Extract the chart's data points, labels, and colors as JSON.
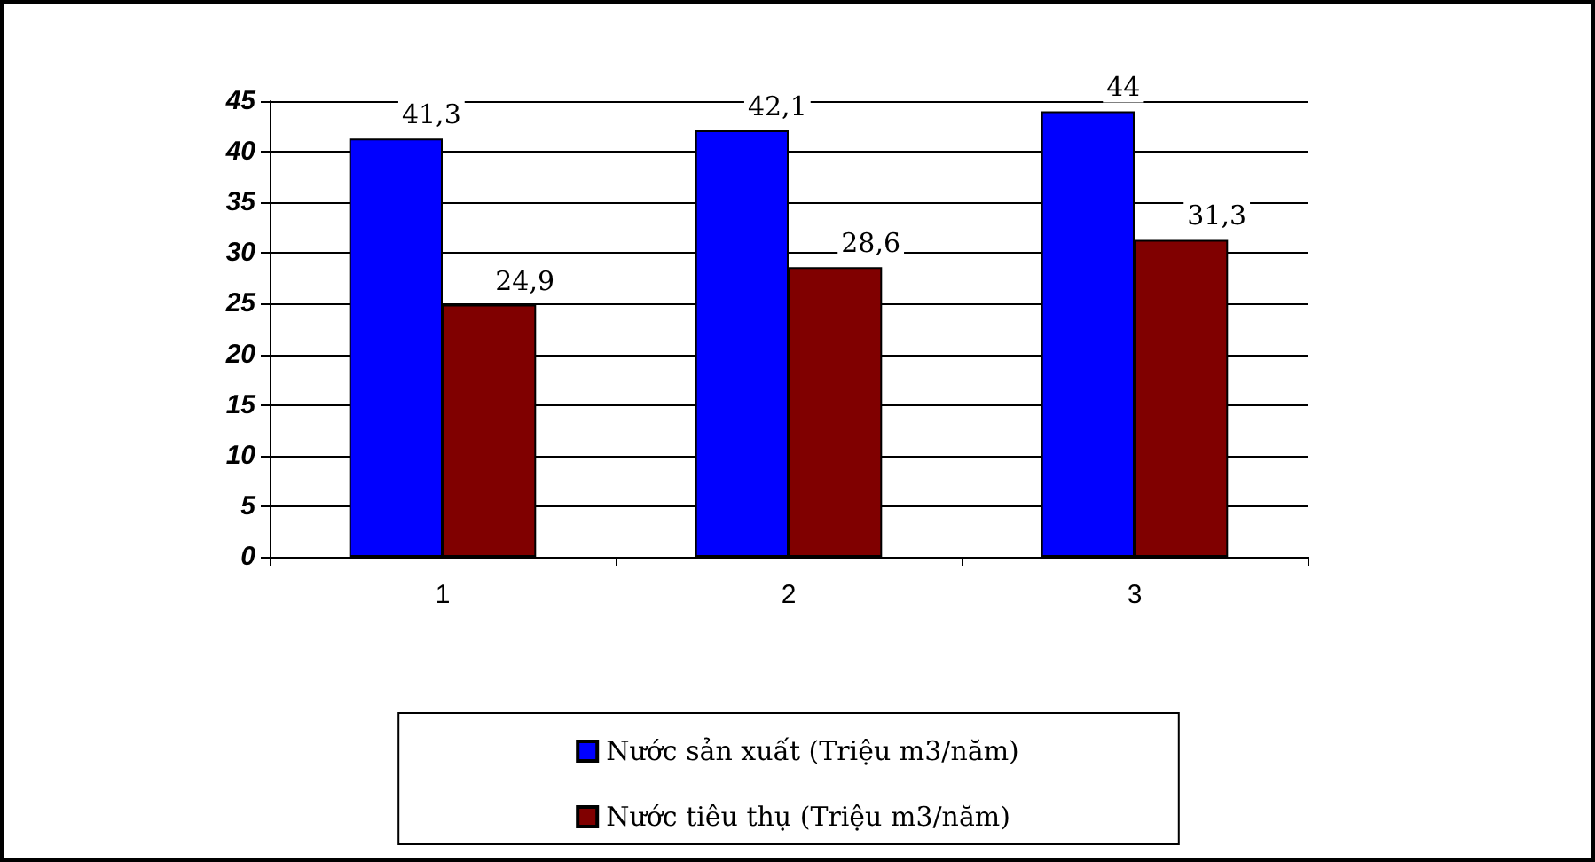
{
  "chart_data": {
    "type": "bar",
    "categories": [
      "1",
      "2",
      "3"
    ],
    "series": [
      {
        "name": "Nước sản xuất (Triệu m3/năm)",
        "color": "#0000ff",
        "values": [
          41.3,
          42.1,
          44
        ],
        "value_labels": [
          "41,3",
          "42,1",
          "44"
        ]
      },
      {
        "name": "Nước tiêu thụ (Triệu m3/năm)",
        "color": "#800000",
        "values": [
          24.9,
          28.6,
          31.3
        ],
        "value_labels": [
          "24,9",
          "28,6",
          "31,3"
        ]
      }
    ],
    "ylim": [
      0,
      45
    ],
    "yticks": [
      0,
      5,
      10,
      15,
      20,
      25,
      30,
      35,
      40,
      45
    ],
    "grid": "y",
    "legend": "bottom"
  }
}
